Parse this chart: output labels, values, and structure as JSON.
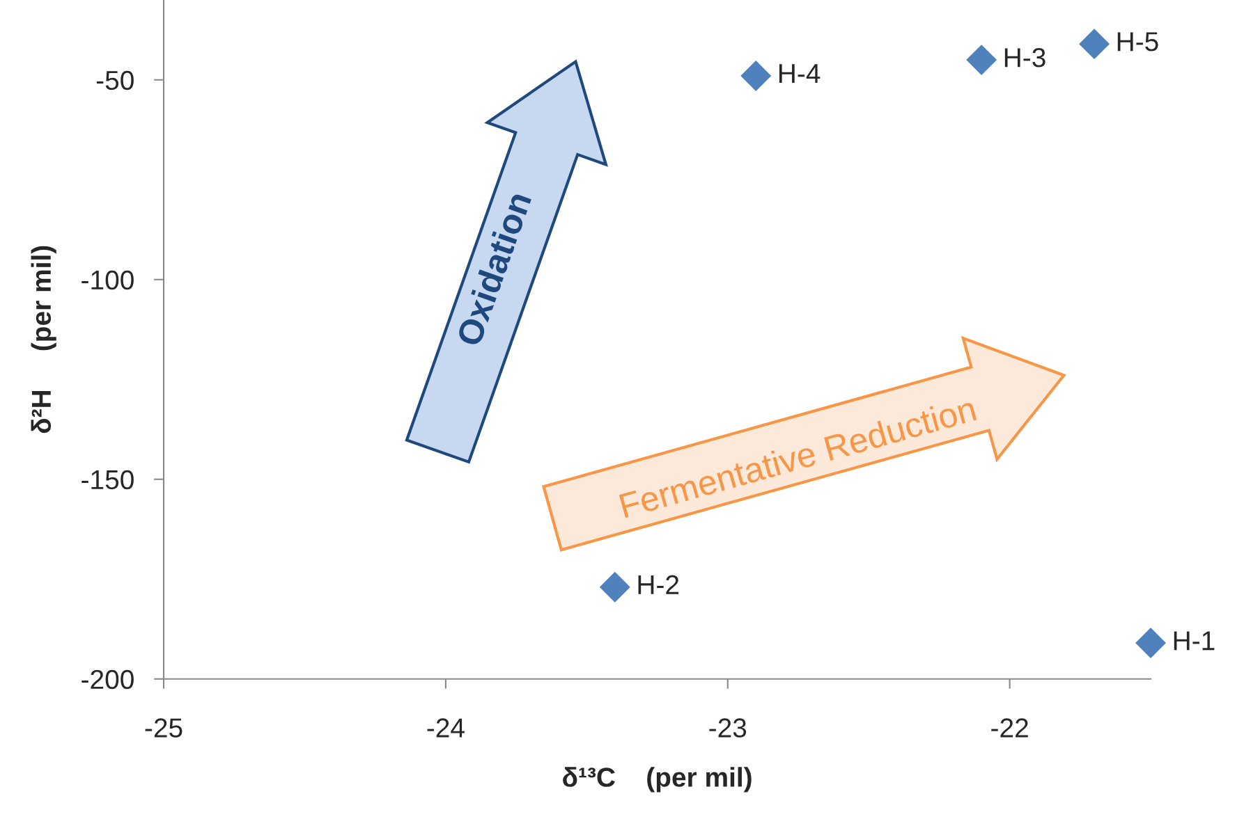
{
  "chart_data": {
    "type": "scatter",
    "xlabel": "δ¹³C    (per mil)",
    "ylabel": "δ²H     (per mil)",
    "x": [
      -21.5,
      -23.4,
      -22.1,
      -22.9,
      -21.7
    ],
    "series": [
      {
        "color": "#4f81bd",
        "values": [
          -191,
          -177,
          -45,
          -49,
          -41
        ]
      }
    ],
    "marker": "diamond",
    "grid": false,
    "legend": false,
    "xlim": [
      -25,
      -21.5
    ],
    "xticks": [
      -25,
      -24,
      -23,
      -22
    ],
    "ylim": [
      -200,
      -30
    ],
    "yticks": [
      -200,
      -150,
      -100,
      -50
    ],
    "annotations": [
      {
        "text": "H-1",
        "x": -21.5,
        "y": -191
      },
      {
        "text": "H-2",
        "x": -23.4,
        "y": -177
      },
      {
        "text": "H-3",
        "x": -22.1,
        "y": -45
      },
      {
        "text": "H-4",
        "x": -22.9,
        "y": -49
      },
      {
        "text": "H-5",
        "x": -21.7,
        "y": -41
      },
      "Oxidation",
      "Fermentative Reduction"
    ]
  }
}
